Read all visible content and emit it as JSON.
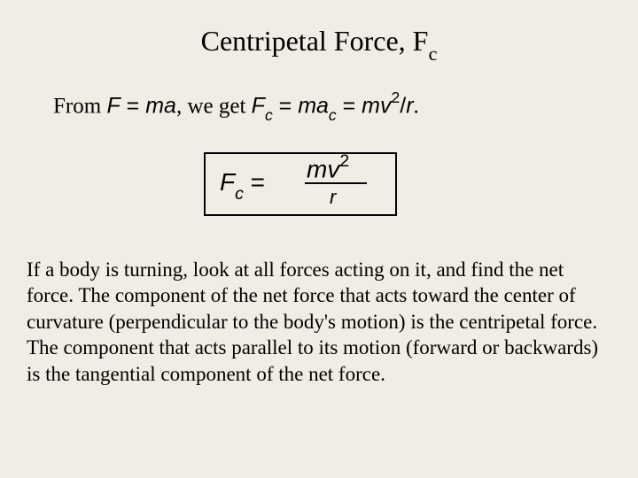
{
  "title": {
    "main": "Centripetal Force,  F",
    "sub": "c"
  },
  "derivation": {
    "from": "From  ",
    "f_eq_ma_F": "F",
    "eq1": " = ",
    "ma": "ma",
    "we_get": ", we get  ",
    "Fc_F": "F",
    "Fc_c": "c",
    "eq2": " = ",
    "mac_ma": "ma",
    "mac_c": "c",
    "eq3": " = ",
    "mv": "mv",
    "two": "2",
    "slash": "/",
    "r": "r",
    "period": "."
  },
  "formula": {
    "F": "F",
    "c": "c",
    "eq": " = ",
    "mv": "mv",
    "two": "2",
    "r": "r"
  },
  "paragraph": "If a body is turning, look at all forces acting on it, and find the net force.  The component of the net force that acts toward the center of curvature (perpendicular to the body's motion) is the centripetal force.  The component that acts parallel to its motion (forward or backwards) is the tangential component of the net force.",
  "colors": {
    "background": "#f0ede4",
    "text": "#000000",
    "border": "#000000"
  }
}
